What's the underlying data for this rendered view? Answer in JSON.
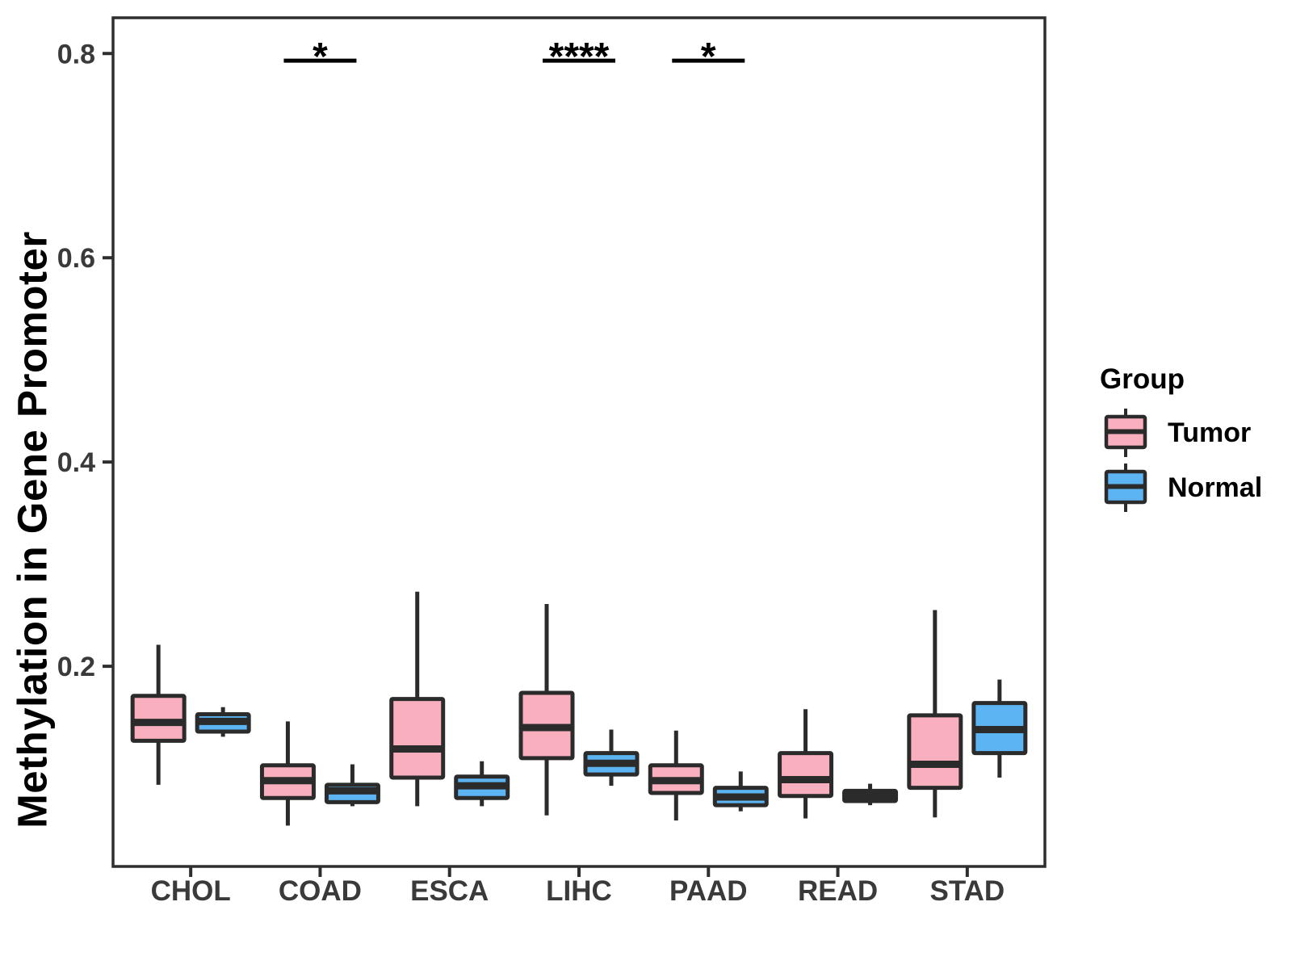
{
  "chart_data": {
    "type": "grouped_boxplot",
    "title": "",
    "xlabel": "",
    "ylabel": "Methylation in Gene Promoter",
    "categories": [
      "CHOL",
      "COAD",
      "ESCA",
      "LIHC",
      "PAAD",
      "READ",
      "STAD"
    ],
    "ylim": [
      0.004,
      0.835
    ],
    "yticks": [
      0.2,
      0.4,
      0.6,
      0.8
    ],
    "grid": false,
    "legend_position": "right",
    "colors": {
      "tumor_fill": "#F9AFBE",
      "normal_fill": "#5CB5F2",
      "box_stroke": "#2B2B2B",
      "panel_border": "#2E2E2E",
      "axis_text": "#3A3A3A",
      "title_text": "#000000",
      "significance": "#000000"
    },
    "legend": {
      "title": "Group",
      "entries": [
        {
          "label": "Tumor",
          "color": "#F9AFBE"
        },
        {
          "label": "Normal",
          "color": "#5CB5F2"
        }
      ]
    },
    "series": [
      {
        "name": "Tumor",
        "fill": "#F9AFBE",
        "boxes": [
          {
            "category": "CHOL",
            "whisker_low": 0.084,
            "q1": 0.127,
            "median": 0.145,
            "q3": 0.171,
            "whisker_high": 0.221
          },
          {
            "category": "COAD",
            "whisker_low": 0.044,
            "q1": 0.071,
            "median": 0.088,
            "q3": 0.103,
            "whisker_high": 0.146
          },
          {
            "category": "ESCA",
            "whisker_low": 0.063,
            "q1": 0.091,
            "median": 0.119,
            "q3": 0.168,
            "whisker_high": 0.273
          },
          {
            "category": "LIHC",
            "whisker_low": 0.054,
            "q1": 0.11,
            "median": 0.14,
            "q3": 0.174,
            "whisker_high": 0.261
          },
          {
            "category": "PAAD",
            "whisker_low": 0.049,
            "q1": 0.076,
            "median": 0.088,
            "q3": 0.103,
            "whisker_high": 0.137
          },
          {
            "category": "READ",
            "whisker_low": 0.051,
            "q1": 0.073,
            "median": 0.089,
            "q3": 0.115,
            "whisker_high": 0.158
          },
          {
            "category": "STAD",
            "whisker_low": 0.052,
            "q1": 0.081,
            "median": 0.104,
            "q3": 0.152,
            "whisker_high": 0.255
          }
        ]
      },
      {
        "name": "Normal",
        "fill": "#5CB5F2",
        "boxes": [
          {
            "category": "CHOL",
            "whisker_low": 0.131,
            "q1": 0.136,
            "median": 0.146,
            "q3": 0.153,
            "whisker_high": 0.16
          },
          {
            "category": "COAD",
            "whisker_low": 0.063,
            "q1": 0.067,
            "median": 0.078,
            "q3": 0.084,
            "whisker_high": 0.104
          },
          {
            "category": "ESCA",
            "whisker_low": 0.063,
            "q1": 0.071,
            "median": 0.083,
            "q3": 0.092,
            "whisker_high": 0.107
          },
          {
            "category": "LIHC",
            "whisker_low": 0.083,
            "q1": 0.094,
            "median": 0.105,
            "q3": 0.115,
            "whisker_high": 0.138
          },
          {
            "category": "PAAD",
            "whisker_low": 0.058,
            "q1": 0.064,
            "median": 0.072,
            "q3": 0.081,
            "whisker_high": 0.097
          },
          {
            "category": "READ",
            "whisker_low": 0.064,
            "q1": 0.068,
            "median": 0.073,
            "q3": 0.078,
            "whisker_high": 0.085
          },
          {
            "category": "STAD",
            "whisker_low": 0.091,
            "q1": 0.115,
            "median": 0.138,
            "q3": 0.164,
            "whisker_high": 0.187
          }
        ]
      }
    ],
    "significance": [
      {
        "category": "COAD",
        "label": "*",
        "y_value": 0.793
      },
      {
        "category": "LIHC",
        "label": "****",
        "y_value": 0.793
      },
      {
        "category": "PAAD",
        "label": "*",
        "y_value": 0.793
      }
    ]
  }
}
